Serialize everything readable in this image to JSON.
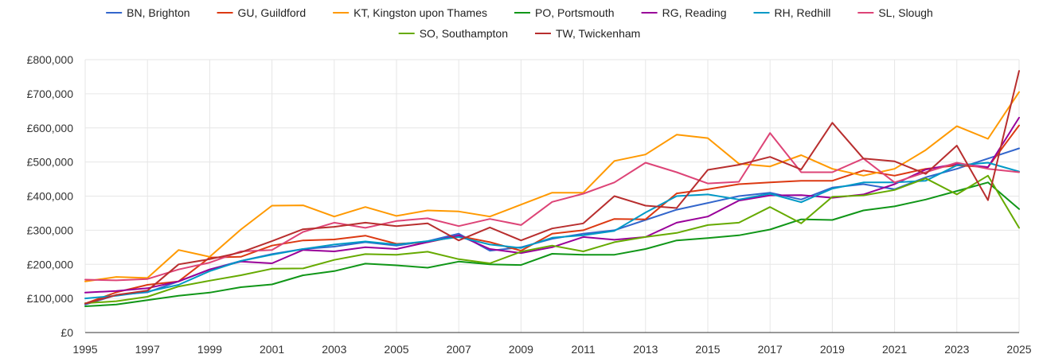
{
  "chart_data": {
    "type": "line",
    "x": [
      1995,
      1996,
      1997,
      1998,
      1999,
      2000,
      2001,
      2002,
      2003,
      2004,
      2005,
      2006,
      2007,
      2008,
      2009,
      2010,
      2011,
      2012,
      2013,
      2014,
      2015,
      2016,
      2017,
      2018,
      2019,
      2020,
      2021,
      2022,
      2023,
      2024,
      2025
    ],
    "x_ticks": [
      "1995",
      "1997",
      "1999",
      "2001",
      "2003",
      "2005",
      "2007",
      "2009",
      "2011",
      "2013",
      "2015",
      "2017",
      "2019",
      "2021",
      "2023",
      "2025"
    ],
    "y_ticks": [
      "£0",
      "£100,000",
      "£200,000",
      "£300,000",
      "£400,000",
      "£500,000",
      "£600,000",
      "£700,000",
      "£800,000"
    ],
    "ylim": [
      0,
      800000
    ],
    "grid": true,
    "legend_position": "top",
    "series": [
      {
        "name": "BN, Brighton",
        "color": "#3366cc",
        "values": [
          82000,
          110000,
          118000,
          150000,
          185000,
          210000,
          230000,
          245000,
          252000,
          265000,
          255000,
          268000,
          290000,
          240000,
          250000,
          275000,
          290000,
          300000,
          330000,
          360000,
          380000,
          400000,
          410000,
          390000,
          425000,
          435000,
          420000,
          455000,
          480000,
          510000,
          540000
        ]
      },
      {
        "name": "GU, Guildford",
        "color": "#dc3912",
        "values": [
          85000,
          118000,
          140000,
          150000,
          220000,
          222000,
          255000,
          270000,
          273000,
          284000,
          260000,
          265000,
          283000,
          265000,
          240000,
          290000,
          300000,
          333000,
          332000,
          408000,
          420000,
          435000,
          440000,
          445000,
          445000,
          475000,
          460000,
          480000,
          490000,
          485000,
          607000
        ]
      },
      {
        "name": "KT, Kingston upon Thames",
        "color": "#ff9900",
        "values": [
          150000,
          163000,
          160000,
          242000,
          222000,
          302000,
          372000,
          373000,
          340000,
          368000,
          342000,
          358000,
          355000,
          340000,
          375000,
          410000,
          410000,
          503000,
          522000,
          580000,
          570000,
          495000,
          487000,
          520000,
          480000,
          460000,
          480000,
          535000,
          605000,
          568000,
          705000
        ]
      },
      {
        "name": "PO, Portsmouth",
        "color": "#109618",
        "values": [
          77000,
          82000,
          95000,
          108000,
          117000,
          133000,
          141000,
          168000,
          180000,
          202000,
          197000,
          190000,
          208000,
          200000,
          198000,
          231000,
          228000,
          228000,
          245000,
          270000,
          277000,
          285000,
          302000,
          332000,
          330000,
          358000,
          370000,
          390000,
          415000,
          440000,
          362000
        ]
      },
      {
        "name": "RG, Reading",
        "color": "#990099",
        "values": [
          117000,
          122000,
          130000,
          150000,
          185000,
          208000,
          203000,
          242000,
          238000,
          250000,
          245000,
          265000,
          285000,
          245000,
          233000,
          250000,
          280000,
          272000,
          280000,
          322000,
          340000,
          387000,
          402000,
          403000,
          395000,
          405000,
          435000,
          478000,
          495000,
          485000,
          630000
        ]
      },
      {
        "name": "RH, Redhill",
        "color": "#0099c6",
        "values": [
          100000,
          108000,
          120000,
          140000,
          180000,
          210000,
          228000,
          245000,
          258000,
          267000,
          258000,
          268000,
          280000,
          258000,
          248000,
          278000,
          285000,
          298000,
          352000,
          400000,
          405000,
          390000,
          407000,
          382000,
          422000,
          440000,
          440000,
          445000,
          490000,
          498000,
          472000
        ]
      },
      {
        "name": "SL, Slough",
        "color": "#dd4477",
        "values": [
          155000,
          153000,
          157000,
          185000,
          205000,
          238000,
          242000,
          295000,
          322000,
          307000,
          327000,
          335000,
          312000,
          333000,
          315000,
          383000,
          407000,
          440000,
          498000,
          470000,
          437000,
          442000,
          585000,
          470000,
          470000,
          510000,
          440000,
          470000,
          498000,
          480000,
          470000
        ]
      },
      {
        "name": "SO, Southampton",
        "color": "#66aa00",
        "values": [
          86000,
          92000,
          105000,
          135000,
          152000,
          168000,
          187000,
          188000,
          213000,
          230000,
          228000,
          237000,
          215000,
          203000,
          237000,
          255000,
          238000,
          265000,
          280000,
          292000,
          315000,
          322000,
          368000,
          320000,
          398000,
          402000,
          418000,
          452000,
          405000,
          460000,
          307000
        ]
      },
      {
        "name": "TW, Twickenham",
        "color": "#b82e2e",
        "values": [
          85000,
          110000,
          123000,
          200000,
          215000,
          235000,
          268000,
          303000,
          310000,
          322000,
          312000,
          320000,
          270000,
          308000,
          270000,
          305000,
          320000,
          400000,
          372000,
          365000,
          477000,
          492000,
          515000,
          478000,
          615000,
          510000,
          502000,
          465000,
          548000,
          388000,
          767000
        ]
      }
    ]
  }
}
